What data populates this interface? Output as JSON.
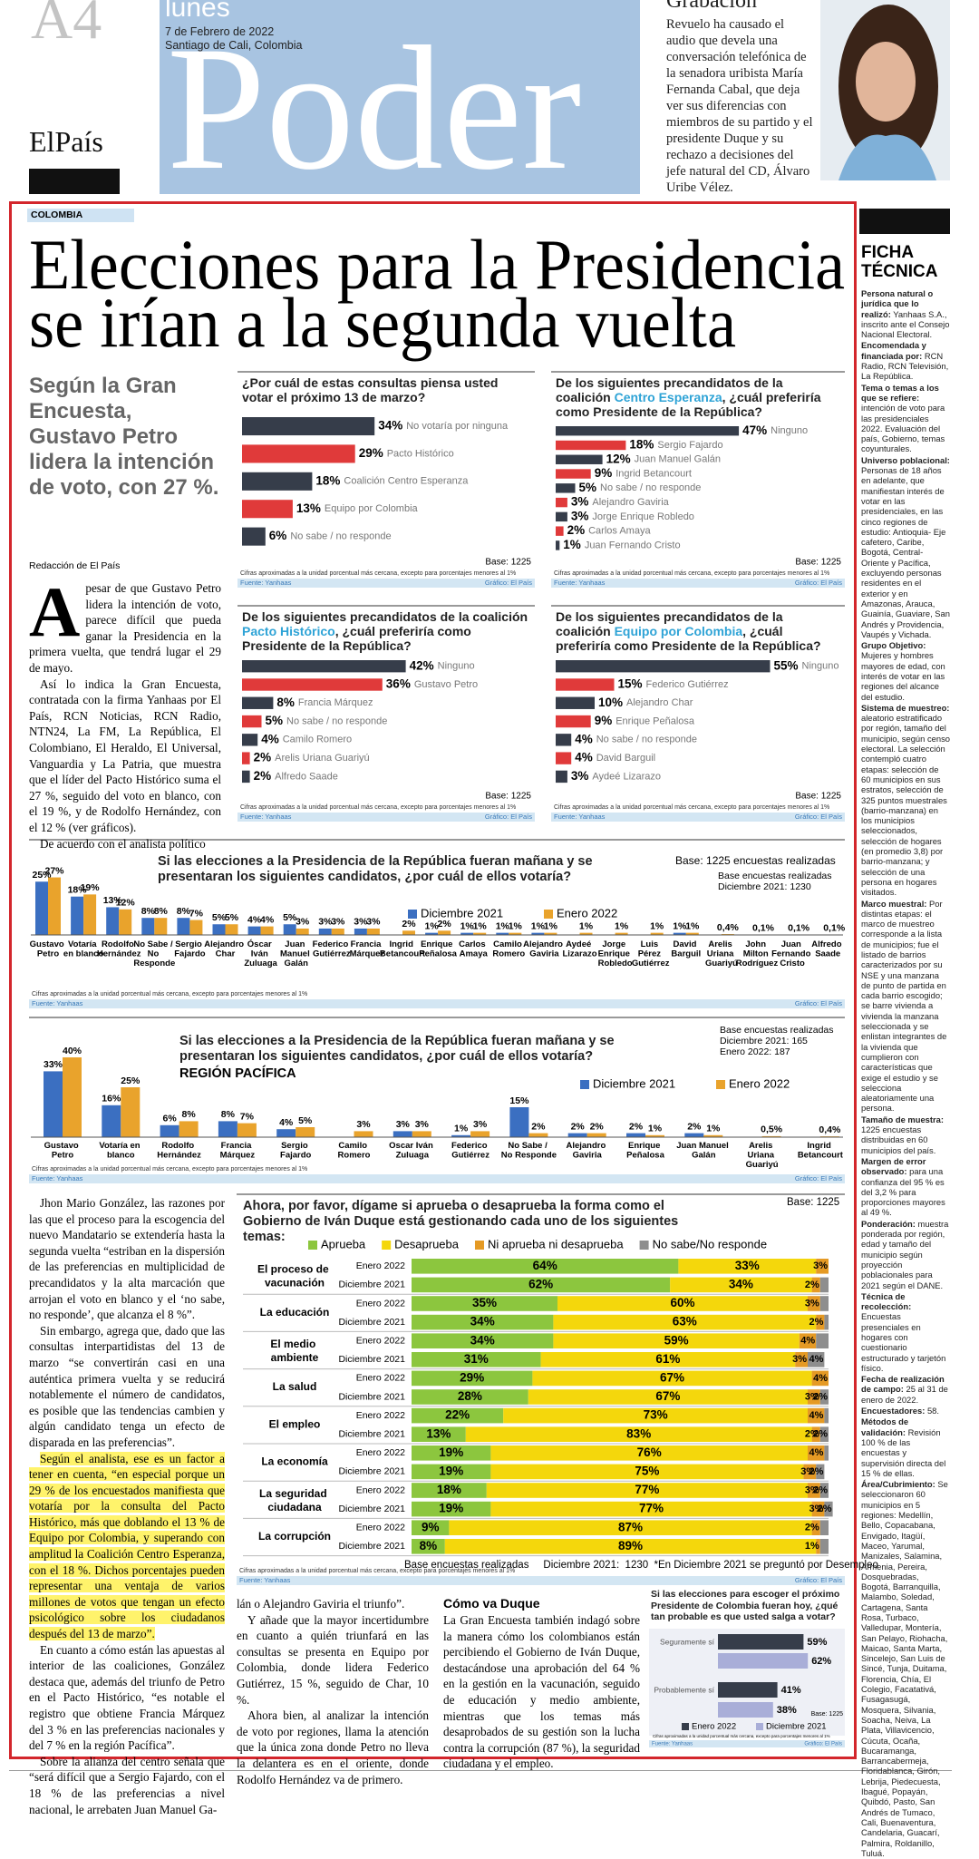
{
  "header": {
    "page": "A4",
    "day": "lunes",
    "date": "7 de Febrero de 2022",
    "place": "Santiago de Cali, Colombia",
    "section": "Poder",
    "brand": "ElPaís",
    "teaser_title": "Grabación",
    "teaser_text": "Revuelo ha causado el audio que devela una conversación telefónica de la senadora uribista María Fernanda Cabal, que deja ver sus diferencias con miembros de su partido y el presidente Duque y su rechazo a decisiones del jefe natural del CD, Álvaro Uribe Vélez."
  },
  "article": {
    "kicker": "COLOMBIA",
    "headline": [
      "Elecciones para la Presidencia",
      "se irían a la segunda vuelta"
    ],
    "deck": "Según la Gran Encuesta, Gustavo Petro lidera la intención de voto, con 27 %.",
    "byline": "Redacción de El País",
    "dropcap": "A",
    "body_top": [
      "pesar de que Gustavo Petro lidera la intención de voto, parece difícil que pueda ganar la Presidencia en la primera vuelta, que tendrá lugar el 29 de mayo.",
      "Así lo indica la Gran Encuesta, contratada con la firma Yanhaas por El País, RCN Noticias, RCN Radio, NTN24, La FM, La República, El Colombiano, El Heraldo, El Universal, Vanguardia y La Patria, que muestra que el líder del Pacto Histórico suma el 27 %, seguido del voto en blanco, con el 19 %, y de Rodolfo Hernández, con el 12 % (ver gráficos).",
      "De acuerdo con el analista político"
    ],
    "body_col1": [
      "Jhon Mario González, las razones por las que el proceso para la escogencia del nuevo Mandatario se extendería hasta la segunda vuelta “estriban en la dispersión de las preferencias en multiplicidad de precandidatos y la alta marcación que arrojan el voto en blanco y el ‘no sabe, no responde’, que alcanza el 8 %”.",
      "Sin embargo, agrega que, dado que las consultas interpartidistas del 13 de marzo “se convertirán casi en una auténtica primera vuelta y se reducirá notablemente el número de candidatos, es posible que las tendencias cambien y algún candidato tenga un efecto de disparada en las preferencias”.",
      "Según el analista, ese es un factor a tener en cuenta, “en especial porque un 29 % de los encuestados manifiesta que votaría por la consulta del Pacto Histórico, más que doblando el 13 % de Equipo por Colombia, y superando con amplitud la Coalición Centro Esperanza, con el 18 %. Dichos porcentajes pueden representar una ventaja de varios millones de votos que tengan un efecto psicológico sobre los ciudadanos después del 13 de marzo”.",
      "En cuanto a cómo están las apuestas al interior de las coaliciones, González destaca que, además del triunfo de Petro en el Pacto Histórico, “es notable el registro que obtiene Francia Márquez del 3 % en las preferencias nacionales y del 7 % en la región Pacífica”.",
      "Sobre la alianza del centro señala que “será difícil que a Sergio Fajardo, con el 18 % de las preferencias a nivel nacional, le arrebaten Juan Manuel Ga-"
    ],
    "body_col2": [
      "lán o Alejandro Gaviria el triunfo”.",
      "Y añade que la mayor incertidumbre en cuanto a quién triunfará en las consultas se presenta en Equipo por Colombia, donde lidera Federico Gutiérrez, 15 %, seguido de Char, 10 %.",
      "Ahora bien, al analizar la intención de voto por regiones, llama la atención que la única zona donde Petro no lleva la delantera es en el oriente, donde Rodolfo Hernández va de primero."
    ],
    "subhead_col3": "Cómo va Duque",
    "body_col3": [
      "La Gran Encuesta también indagó sobre la manera cómo los colombianos están percibiendo el Gobierno de Iván Duque, destacándose una aprobación del 64 % en la gestión en la vacunación, seguido de educación y medio ambiente, mientras que los temas más desaprobados de su gestión son la lucha contra la corrupción (87 %), la seguridad ciudadana y el empleo."
    ]
  },
  "ficha": {
    "title": "FICHA TÉCNICA",
    "items": [
      {
        "label": "Persona natural o jurídica que lo realizó:",
        "text": "Yanhaas S.A., inscrito ante el Consejo Nacional Electoral."
      },
      {
        "label": "Encomendada y financiada por:",
        "text": "RCN Radio, RCN Televisión, La República."
      },
      {
        "label": "Tema o temas a los que se refiere:",
        "text": "intención de voto para las presidenciales 2022. Evaluación del país, Gobierno, temas coyunturales."
      },
      {
        "label": "Universo poblacional:",
        "text": "Personas de 18 años en adelante, que manifiestan interés de votar en las presidenciales, en las cinco regiones de estudio: Antioquia- Eje cafetero, Caribe, Bogotá, Central-Oriente y Pacífica, excluyendo personas residentes en el exterior y en Amazonas, Arauca, Guainía, Guaviare, San Andrés y Providencia, Vaupés y Vichada."
      },
      {
        "label": "Grupo Objetivo:",
        "text": "Mujeres y hombres mayores de edad, con interés de votar en las regiones del alcance del estudio."
      },
      {
        "label": "Sistema de muestreo:",
        "text": "aleatorio estratificado por región, tamaño del municipio, según censo electoral. La selección contempló cuatro etapas: selección de 60 municipios en sus estratos, selección de 325 puntos muestrales (barrio-manzana) en los municipios seleccionados, selección de hogares (en promedio 3,8) por barrio-manzana; y selección de una persona en hogares visitados."
      },
      {
        "label": "Marco muestral:",
        "text": "Por distintas etapas: el marco de muestreo corresponde a la lista de municipios; fue el listado de barrios caracterizados por su NSE y una manzana de punto de partida en cada barrio escogido; se barre vivienda a vivienda la manzana seleccionada y se enlistan integrantes de la vivienda que cumplieron con características que exige el estudio y se selecciona aleatoriamente una persona."
      },
      {
        "label": "Tamaño de muestra:",
        "text": "1225 encuestas distribuidas en 60 municipios del país."
      },
      {
        "label": "Margen de error observado:",
        "text": "para una confianza del 95 % es del 3,2 % para proporciones mayores al 49 %."
      },
      {
        "label": "Ponderación:",
        "text": "muestra ponderada por región, edad y tamaño del municipio según proyección poblacionales para 2021 según el DANE."
      },
      {
        "label": "Técnica de recolección:",
        "text": "Encuestas presenciales en hogares con cuestionario estructurado y tarjetón físico."
      },
      {
        "label": "Fecha de realización de campo:",
        "text": "25 al 31 de enero de 2022."
      },
      {
        "label": "Encuestadores:",
        "text": "58."
      },
      {
        "label": "Métodos de validación:",
        "text": "Revisión 100 % de las encuestas y supervisión directa del 15 % de ellas."
      },
      {
        "label": "Área/Cubrimiento:",
        "text": "Se seleccionaron 60 municipios en 5 regiones: Medellín, Bello, Copacabana, Envigado, Itagüí, Maceo, Yarumal, Manizales, Salamina, Armenia, Pereira, Dosquebradas, Bogotá, Barranquilla, Malambo, Soledad, Cartagena, Santa Rosa, Turbaco, Valledupar, Montería, San Pelayo, Riohacha, Maicao, Santa Marta, Sincelejo, San Luis de Sincé, Tunja, Duitama, Florencia, Chía, El Colegio, Facatativá, Fusagasugá, Mosquera, Silvania, Soacha, Neiva, La Plata, Villavicencio, Cúcuta, Ocaña, Bucaramanga, Barrancabermeja, Floridablanca, Girón, Lebrija, Piedecuesta, Ibagué, Popayán, Quibdó, Pasto, San Andrés de Tumaco, Cali, Buenaventura, Candelaria, Guacarí, Palmira, Roldanillo, Tuluá."
      }
    ]
  },
  "common": {
    "note": "Cifras aproximadas a la unidad porcentual más cercana, excepto para porcentajes menores al 1%",
    "source": "Fuente: Yanhaas",
    "credit": "Gráfico: El País"
  },
  "hbar": [
    {
      "type": "hbar",
      "title": "¿Por cuál de estas consultas piensa usted votar el próximo 13 de marzo?",
      "labels": [
        "No votaría por ninguna",
        "Pacto Histórico",
        "Coalición Centro Esperanza",
        "Equipo por Colombia",
        "No sabe / no responde"
      ],
      "values": [
        34,
        29,
        18,
        13,
        6
      ],
      "value_labels": [
        "34%",
        "29%",
        "18%",
        "13%",
        "6%"
      ],
      "colors": [
        "#363d4a",
        "#e03a3a",
        "#363d4a",
        "#e03a3a",
        "#363d4a"
      ],
      "base": "Base: 1225"
    },
    {
      "type": "hbar",
      "title_pre": "De los siguientes precandidatos de la coalición ",
      "coalition": "Centro Esperanza",
      "title_post": ", ¿cuál preferiría como Presidente de la República?",
      "labels": [
        "Ninguno",
        "Sergio Fajardo",
        "Juan Manuel Galán",
        "Ingrid Betancourt",
        "No sabe / no responde",
        "Alejandro Gaviria",
        "Jorge Enrique Robledo",
        "Carlos Amaya",
        "Juan Fernando Cristo"
      ],
      "values": [
        47,
        18,
        12,
        9,
        5,
        3,
        3,
        2,
        1
      ],
      "value_labels": [
        "47%",
        "18%",
        "12%",
        "9%",
        "5%",
        "3%",
        "3%",
        "2%",
        "1%"
      ],
      "colors": [
        "#363d4a",
        "#e03a3a",
        "#363d4a",
        "#e03a3a",
        "#363d4a",
        "#e03a3a",
        "#363d4a",
        "#e03a3a",
        "#363d4a"
      ],
      "base": "Base: 1225"
    },
    {
      "type": "hbar",
      "title_pre": "De los siguientes precandidatos de la coalición ",
      "coalition": "Pacto Histórico",
      "title_post": ", ¿cuál preferiría como Presidente de la República?",
      "labels": [
        "Ninguno",
        "Gustavo Petro",
        "Francia Márquez",
        "No sabe / no responde",
        "Camilo Romero",
        "Arelis Uriana Guariyú",
        "Alfredo Saade"
      ],
      "values": [
        42,
        36,
        8,
        5,
        4,
        2,
        2
      ],
      "value_labels": [
        "42%",
        "36%",
        "8%",
        "5%",
        "4%",
        "2%",
        "2%"
      ],
      "colors": [
        "#363d4a",
        "#e03a3a",
        "#363d4a",
        "#e03a3a",
        "#363d4a",
        "#e03a3a",
        "#363d4a"
      ],
      "base": "Base: 1225"
    },
    {
      "type": "hbar",
      "title_pre": "De los siguientes precandidatos de la coalición ",
      "coalition": "Equipo por Colombia",
      "title_post": ", ¿cuál preferiría como Presidente de la República?",
      "labels": [
        "Ninguno",
        "Federico Gutiérrez",
        "Alejandro Char",
        "Enrique Peñalosa",
        "No sabe / no responde",
        "David Barguil",
        "Aydeé Lizarazo"
      ],
      "values": [
        55,
        15,
        10,
        9,
        4,
        4,
        3
      ],
      "value_labels": [
        "55%",
        "15%",
        "10%",
        "9%",
        "4%",
        "4%",
        "3%"
      ],
      "colors": [
        "#363d4a",
        "#e03a3a",
        "#363d4a",
        "#e03a3a",
        "#363d4a",
        "#e03a3a",
        "#363d4a"
      ],
      "base": "Base: 1225"
    }
  ],
  "columns": [
    {
      "type": "bar",
      "title": "Si las elecciones a la Presidencia de la República fueran mañana y se presentaran los siguientes candidatos, ¿por cuál de ellos votaría?",
      "base": "Base: 1225  encuestas realizadas",
      "base2": [
        "Base encuestas realizadas",
        "Diciembre 2021: 1230"
      ],
      "categories": [
        "Gustavo Petro",
        "Votaría en blanco",
        "Rodolfo Hernández",
        "No Sabe / No Responde",
        "Sergio Fajardo",
        "Alejandro Char",
        "Óscar Iván Zuluaga",
        "Juan Manuel Galán",
        "Federico Gutiérrez",
        "Francia Márquez",
        "Ingrid Betancourt",
        "Enrique Peñalosa",
        "Carlos Amaya",
        "Camilo Romero",
        "Alejandro Gaviria",
        "Aydeé Lizarazo",
        "Jorge Enrique Robledo",
        "Luis Pérez Gutiérrez",
        "David Barguil",
        "Arelis Uriana Guariyú",
        "John Milton Rodríguez",
        "Juan Fernando Cristo",
        "Alfredo Saade"
      ],
      "series": [
        {
          "name": "Diciembre 2021",
          "color": "#3b6fc1",
          "values": [
            25,
            18,
            13,
            8,
            8,
            5,
            4,
            5,
            3,
            3,
            null,
            1,
            1,
            1,
            1,
            null,
            null,
            null,
            1,
            null,
            null,
            null,
            null
          ],
          "value_labels": [
            "25%",
            "18%",
            "13%",
            "8%",
            "8%",
            "5%",
            "4%",
            "5%",
            "3%",
            "3%",
            null,
            "1%",
            "1%",
            "1%",
            "1%",
            null,
            null,
            null,
            "1%",
            null,
            null,
            null,
            null
          ]
        },
        {
          "name": "Enero 2022",
          "color": "#e9a32c",
          "values": [
            27,
            19,
            12,
            8,
            7,
            5,
            4,
            3,
            3,
            3,
            2,
            2,
            1,
            1,
            1,
            1,
            1,
            1,
            1,
            0.4,
            0.1,
            0.1,
            0.1
          ],
          "value_labels": [
            "27%",
            "19%",
            "12%",
            "8%",
            "7%",
            "5%",
            "4%",
            "3%",
            "3%",
            "3%",
            "2%",
            "2%",
            "1%",
            "1%",
            "1%",
            "1%",
            "1%",
            "1%",
            "1%",
            "0,4%",
            "0,1%",
            "0,1%",
            "0,1%"
          ]
        }
      ]
    },
    {
      "type": "bar",
      "title": "Si las elecciones a la Presidencia de la República fueran mañana y se presentaran los siguientes candidatos, ¿por cuál de ellos votaría?",
      "subtitle": "REGIÓN PACÍFICA",
      "base2": [
        "Base encuestas realizadas",
        "Diciembre 2021: 165",
        "Enero 2022: 187"
      ],
      "categories": [
        "Gustavo Petro",
        "Votaría en blanco",
        "Rodolfo Hernández",
        "Francia Márquez",
        "Sergio Fajardo",
        "Camilo Romero",
        "Oscar Iván Zuluaga",
        "Federico Gutiérrez",
        "No Sabe / No Responde",
        "Alejandro Gaviria",
        "Enrique Peñalosa",
        "Juan Manuel Galán",
        "Arelis Uriana Guariyú",
        "Ingrid Betancourt"
      ],
      "series": [
        {
          "name": "Diciembre 2021",
          "color": "#3b6fc1",
          "values": [
            33,
            16,
            6,
            8,
            4,
            null,
            3,
            1,
            15,
            2,
            2,
            2,
            null,
            null
          ],
          "value_labels": [
            "33%",
            "16%",
            "6%",
            "8%",
            "4%",
            null,
            "3%",
            "1%",
            "15%",
            "2%",
            "2%",
            "2%",
            null,
            null
          ]
        },
        {
          "name": "Enero 2022",
          "color": "#e9a32c",
          "values": [
            40,
            25,
            8,
            7,
            5,
            3,
            3,
            3,
            2,
            2,
            1,
            1,
            0.5,
            0.4
          ],
          "value_labels": [
            "40%",
            "25%",
            "8%",
            "7%",
            "5%",
            "3%",
            "3%",
            "3%",
            "2%",
            "2%",
            "1%",
            "1%",
            "0,5%",
            "0,4%"
          ]
        }
      ]
    }
  ],
  "approval": {
    "type": "stacked_hbar",
    "title": "Ahora, por favor, dígame si aprueba o desaprueba la forma como el Gobierno de Iván Duque está gestionando cada uno de los siguientes temas:",
    "base": "Base: 1225",
    "topics": [
      "El proceso de vacunación",
      "La educación",
      "El medio ambiente",
      "La salud",
      "El empleo",
      "La economía",
      "La seguridad ciudadana",
      "La corrupción"
    ],
    "periods": [
      "Enero 2022",
      "Diciembre 2021"
    ],
    "series": [
      {
        "name": "Aprueba",
        "color": "#8cc63e",
        "values": [
          64,
          62,
          35,
          34,
          34,
          31,
          29,
          28,
          22,
          13,
          19,
          19,
          18,
          19,
          9,
          8
        ],
        "value_labels": [
          "64%",
          "62%",
          "35%",
          "34%",
          "34%",
          "31%",
          "29%",
          "28%",
          "22%",
          "13%",
          "19%",
          "19%",
          "18%",
          "19%",
          "9%",
          "8%"
        ]
      },
      {
        "name": "Desaprueba",
        "color": "#f4d70c",
        "values": [
          33,
          34,
          60,
          63,
          59,
          61,
          67,
          67,
          73,
          83,
          76,
          75,
          77,
          77,
          87,
          89
        ],
        "value_labels": [
          "33%",
          "34%",
          "60%",
          "63%",
          "59%",
          "61%",
          "67%",
          "67%",
          "73%",
          "83%",
          "76%",
          "75%",
          "77%",
          "77%",
          "87%",
          "89%"
        ]
      },
      {
        "name": "Ni aprueba ni desaprueba",
        "color": "#e59a24",
        "values": [
          3,
          2,
          3,
          2,
          4,
          3,
          4,
          3,
          4,
          2,
          4,
          3,
          3,
          3,
          2,
          1
        ],
        "value_labels": [
          "3%",
          "2%",
          "3%",
          "2%",
          "4%",
          "3%",
          "4%",
          "3%",
          "4%",
          "2%",
          "4%",
          "3%",
          "3%",
          "3%",
          "2%",
          "1%"
        ]
      },
      {
        "name": "No sabe/No responde",
        "color": "#8e8e8e",
        "values": [
          0,
          2,
          2,
          1,
          3,
          4,
          0,
          2,
          1,
          2,
          1,
          2,
          2,
          2,
          2,
          2
        ],
        "value_labels": [
          null,
          null,
          null,
          null,
          null,
          "4%",
          null,
          "2%",
          null,
          "2%",
          null,
          "2%",
          "2%",
          "2%",
          null,
          null
        ]
      }
    ],
    "footnote": "Base encuestas realizadas     Diciembre 2021:  1230  *En Diciembre 2021 se preguntó por Desempleo"
  },
  "turnout": {
    "type": "grouped_hbar",
    "title": "Si las elecciones para escoger el próximo Presidente de Colombia fueran hoy, ¿qué tan probable es que usted salga a votar?",
    "categories": [
      "Seguramente sí",
      "Probablemente sí"
    ],
    "base": "Base: 1225",
    "series": [
      {
        "name": "Enero 2022",
        "color": "#363d4a",
        "values": [
          59,
          41
        ],
        "value_labels": [
          "59%",
          "41%"
        ]
      },
      {
        "name": "Diciembre 2021",
        "color": "#a9aed8",
        "values": [
          62,
          38
        ],
        "value_labels": [
          "62%",
          "38%"
        ]
      }
    ]
  }
}
